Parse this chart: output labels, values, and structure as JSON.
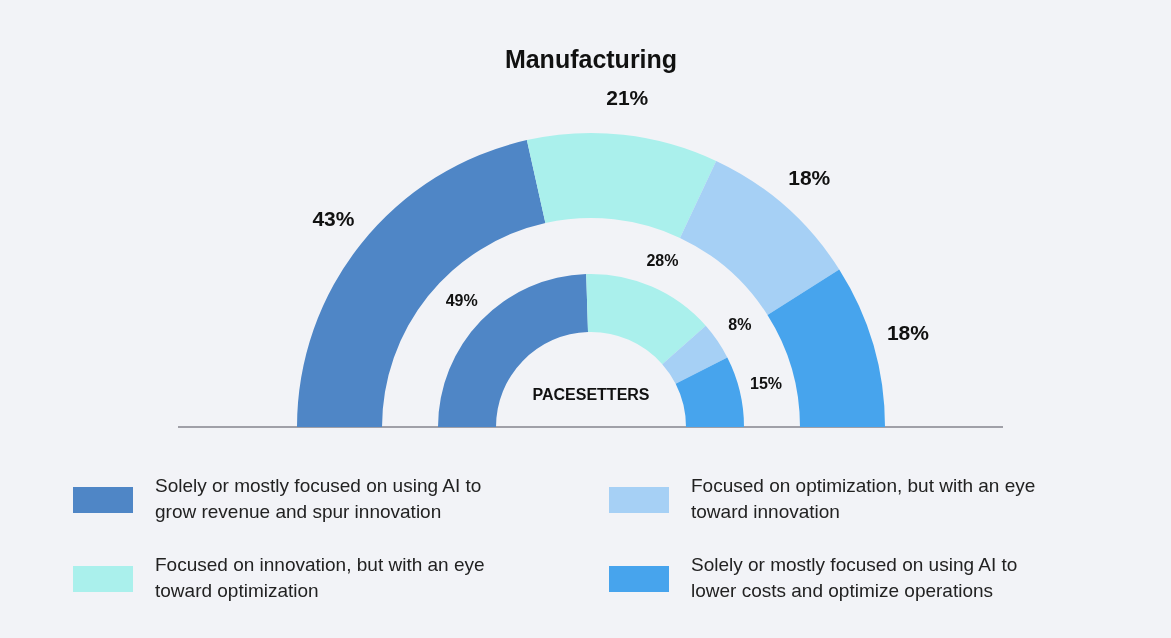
{
  "chart_data": [
    {
      "type": "donut",
      "title": "Manufacturing",
      "categories": [
        "Solely or mostly focused on using AI to grow revenue and spur innovation",
        "Focused on innovation, but with an eye toward optimization",
        "Focused on optimization, but with an eye toward innovation",
        "Solely or mostly focused on using AI to lower costs and optimize operations"
      ],
      "values": [
        43,
        21,
        18,
        18
      ],
      "colors": [
        "#4f86c6",
        "#aaf0ec",
        "#a6d0f5",
        "#47a4ed"
      ],
      "value_labels": [
        "43%",
        "21%",
        "18%",
        "18%"
      ],
      "legend": "bottom"
    },
    {
      "type": "donut",
      "title": "PACESETTERS",
      "categories": [
        null,
        null,
        null,
        null
      ],
      "values": [
        49,
        28,
        8,
        15
      ],
      "colors": [
        "#4f86c6",
        "#aaf0ec",
        "#a6d0f5",
        "#47a4ed"
      ],
      "value_labels": [
        "49%",
        "28%",
        "8%",
        "15%"
      ]
    }
  ]
}
